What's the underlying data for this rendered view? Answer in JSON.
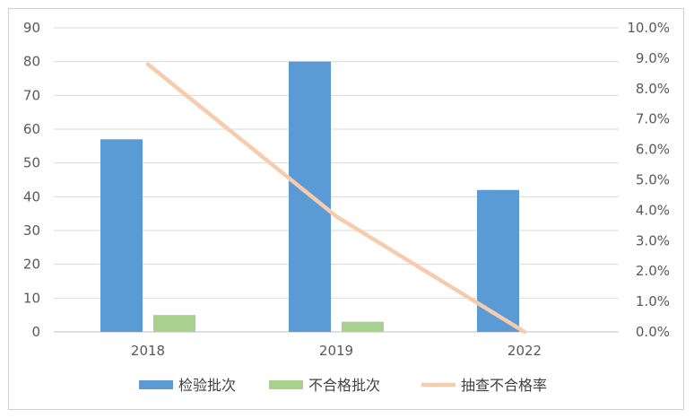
{
  "chart_data": {
    "type": "bar",
    "categories": [
      "2018",
      "2019",
      "2022"
    ],
    "series": [
      {
        "name": "检验批次",
        "kind": "bar",
        "axis": "left",
        "color": "#5B9BD5",
        "values": [
          57,
          80,
          42
        ]
      },
      {
        "name": "不合格批次",
        "kind": "bar",
        "axis": "left",
        "color": "#A9D18E",
        "values": [
          5,
          3,
          0
        ]
      },
      {
        "name": "抽查不合格率",
        "kind": "line",
        "axis": "right",
        "color": "#F8CBAD",
        "values": [
          8.8,
          3.8,
          0.0
        ]
      }
    ],
    "y_left": {
      "min": 0,
      "max": 90,
      "step": 10,
      "ticks": [
        "0",
        "10",
        "20",
        "30",
        "40",
        "50",
        "60",
        "70",
        "80",
        "90"
      ]
    },
    "y_right": {
      "min": 0,
      "max": 10,
      "step": 1,
      "ticks": [
        "0.0%",
        "1.0%",
        "2.0%",
        "3.0%",
        "4.0%",
        "5.0%",
        "6.0%",
        "7.0%",
        "8.0%",
        "9.0%",
        "10.0%"
      ]
    },
    "grid": true,
    "legend_position": "bottom",
    "title": "",
    "xlabel": "",
    "ylabel": ""
  }
}
